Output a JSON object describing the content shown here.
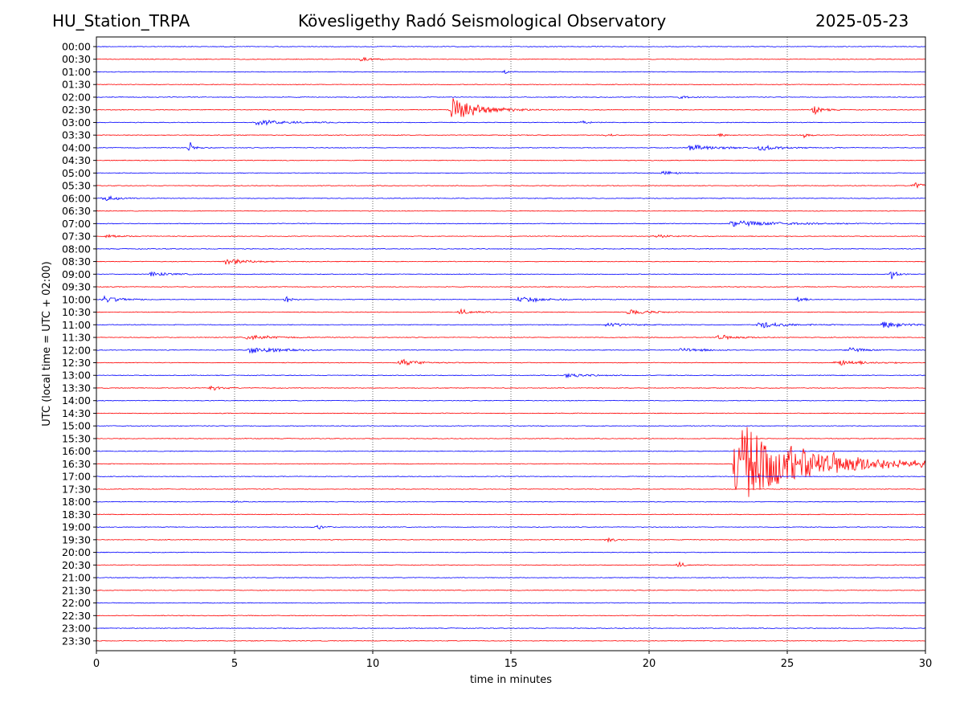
{
  "header": {
    "station": "HU_Station_TRPA",
    "observatory": "Kövesligethy Radó Seismological Observatory",
    "date": "2025-05-23"
  },
  "chart_data": {
    "type": "line",
    "xlabel": "time in minutes",
    "ylabel": "UTC (local time = UTC + 02:00)",
    "xlim": [
      0,
      30
    ],
    "xticks": [
      0,
      5,
      10,
      15,
      20,
      25,
      30
    ],
    "grid": "vertical dotted at 5-minute intervals",
    "colors": {
      "even_rows": "#0000ff",
      "odd_rows": "#ff0000"
    },
    "rows": [
      "00:00",
      "00:30",
      "01:00",
      "01:30",
      "02:00",
      "02:30",
      "03:00",
      "03:30",
      "04:00",
      "04:30",
      "05:00",
      "05:30",
      "06:00",
      "06:30",
      "07:00",
      "07:30",
      "08:00",
      "08:30",
      "09:00",
      "09:30",
      "10:00",
      "10:30",
      "11:00",
      "11:30",
      "12:00",
      "12:30",
      "13:00",
      "13:30",
      "14:00",
      "14:30",
      "15:00",
      "15:30",
      "16:00",
      "16:30",
      "17:00",
      "17:30",
      "18:00",
      "18:30",
      "19:00",
      "19:30",
      "20:00",
      "20:30",
      "21:00",
      "21:30",
      "22:00",
      "22:30",
      "23:00",
      "23:30"
    ],
    "events": [
      {
        "row": "00:30",
        "t": 9.6,
        "amp": 0.25,
        "dur": 1.2
      },
      {
        "row": "01:00",
        "t": 14.8,
        "amp": 0.25,
        "dur": 0.4
      },
      {
        "row": "02:00",
        "t": 21.1,
        "amp": 0.25,
        "dur": 0.6
      },
      {
        "row": "02:30",
        "t": 12.9,
        "amp": 1.6,
        "dur": 2.2
      },
      {
        "row": "02:30",
        "t": 26.0,
        "amp": 0.7,
        "dur": 0.6
      },
      {
        "row": "03:00",
        "t": 5.8,
        "amp": 0.35,
        "dur": 2.5
      },
      {
        "row": "03:00",
        "t": 17.6,
        "amp": 0.25,
        "dur": 0.4
      },
      {
        "row": "03:30",
        "t": 18.5,
        "amp": 0.25,
        "dur": 0.4
      },
      {
        "row": "03:30",
        "t": 22.6,
        "amp": 0.25,
        "dur": 0.4
      },
      {
        "row": "03:30",
        "t": 25.6,
        "amp": 0.35,
        "dur": 0.4
      },
      {
        "row": "04:00",
        "t": 3.4,
        "amp": 0.8,
        "dur": 0.4
      },
      {
        "row": "04:00",
        "t": 21.5,
        "amp": 0.4,
        "dur": 2.5
      },
      {
        "row": "04:00",
        "t": 24.0,
        "amp": 0.35,
        "dur": 1.5
      },
      {
        "row": "05:00",
        "t": 20.5,
        "amp": 0.3,
        "dur": 1.2
      },
      {
        "row": "05:30",
        "t": 29.6,
        "amp": 0.45,
        "dur": 0.8
      },
      {
        "row": "06:00",
        "t": 0.3,
        "amp": 0.4,
        "dur": 1.0
      },
      {
        "row": "07:00",
        "t": 23.0,
        "amp": 0.4,
        "dur": 4.0
      },
      {
        "row": "07:30",
        "t": 0.4,
        "amp": 0.3,
        "dur": 1.0
      },
      {
        "row": "07:30",
        "t": 20.2,
        "amp": 0.3,
        "dur": 1.0
      },
      {
        "row": "08:30",
        "t": 4.7,
        "amp": 0.45,
        "dur": 1.8
      },
      {
        "row": "09:00",
        "t": 2.0,
        "amp": 0.3,
        "dur": 1.5
      },
      {
        "row": "09:00",
        "t": 28.8,
        "amp": 0.7,
        "dur": 0.4
      },
      {
        "row": "10:00",
        "t": 0.3,
        "amp": 0.45,
        "dur": 1.5
      },
      {
        "row": "10:00",
        "t": 6.9,
        "amp": 0.4,
        "dur": 0.4
      },
      {
        "row": "10:00",
        "t": 15.3,
        "amp": 0.45,
        "dur": 2.0
      },
      {
        "row": "10:00",
        "t": 25.4,
        "amp": 0.6,
        "dur": 0.4
      },
      {
        "row": "10:30",
        "t": 13.2,
        "amp": 0.35,
        "dur": 1.0
      },
      {
        "row": "10:30",
        "t": 19.3,
        "amp": 0.4,
        "dur": 1.5
      },
      {
        "row": "11:00",
        "t": 18.5,
        "amp": 0.3,
        "dur": 1.5
      },
      {
        "row": "11:00",
        "t": 24.0,
        "amp": 0.45,
        "dur": 2.0
      },
      {
        "row": "11:00",
        "t": 28.5,
        "amp": 0.55,
        "dur": 1.5
      },
      {
        "row": "11:30",
        "t": 5.5,
        "amp": 0.35,
        "dur": 2.0
      },
      {
        "row": "11:30",
        "t": 22.5,
        "amp": 0.35,
        "dur": 1.5
      },
      {
        "row": "12:00",
        "t": 5.6,
        "amp": 0.55,
        "dur": 2.0
      },
      {
        "row": "12:00",
        "t": 21.2,
        "amp": 0.35,
        "dur": 1.5
      },
      {
        "row": "12:00",
        "t": 27.2,
        "amp": 0.35,
        "dur": 1.2
      },
      {
        "row": "12:30",
        "t": 11.0,
        "amp": 0.45,
        "dur": 1.5
      },
      {
        "row": "12:30",
        "t": 26.8,
        "amp": 0.45,
        "dur": 2.0
      },
      {
        "row": "13:00",
        "t": 17.0,
        "amp": 0.35,
        "dur": 1.5
      },
      {
        "row": "13:30",
        "t": 4.2,
        "amp": 0.45,
        "dur": 0.6
      },
      {
        "row": "16:30",
        "t": 23.15,
        "amp": 6.0,
        "dur": 5.5
      },
      {
        "row": "18:00",
        "t": 5.0,
        "amp": 0.2,
        "dur": 0.4
      },
      {
        "row": "19:00",
        "t": 8.0,
        "amp": 0.35,
        "dur": 0.5
      },
      {
        "row": "19:30",
        "t": 18.5,
        "amp": 0.3,
        "dur": 0.6
      },
      {
        "row": "20:30",
        "t": 21.1,
        "amp": 0.35,
        "dur": 0.5
      }
    ]
  }
}
